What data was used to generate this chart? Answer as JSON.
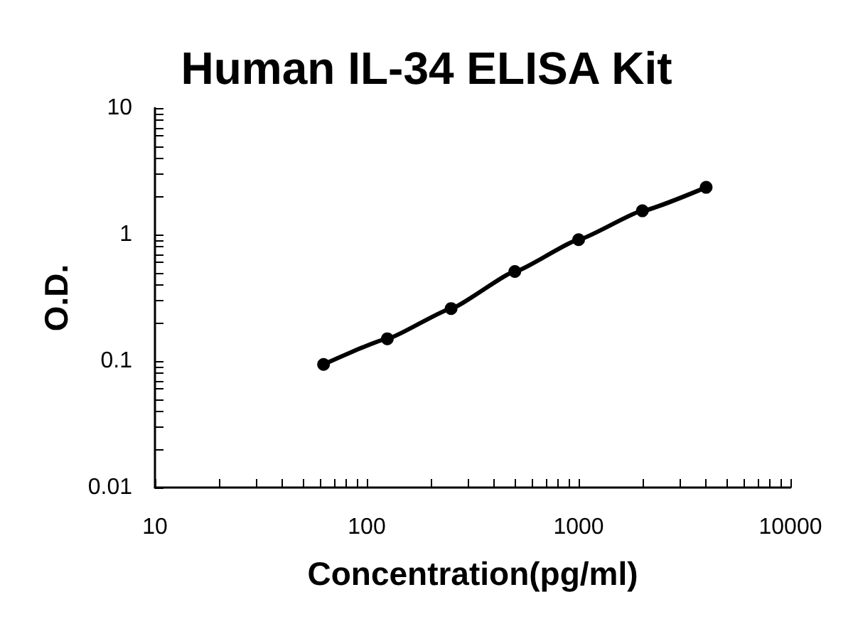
{
  "chart_data": {
    "type": "line",
    "title": "Human IL-34 ELISA Kit",
    "xlabel": "Concentration(pg/ml)",
    "ylabel": "O.D.",
    "x": [
      62.5,
      125,
      250,
      500,
      1000,
      2000,
      4000
    ],
    "series": [
      {
        "color": "#000000",
        "values": [
          0.094,
          0.15,
          0.26,
          0.51,
          0.91,
          1.54,
          2.36
        ]
      }
    ],
    "log": "xy",
    "xlim": [
      10,
      10000
    ],
    "ylim": [
      0.01,
      10
    ],
    "xticks": [
      10,
      {
        "value": 20,
        "label": null
      },
      {
        "value": 30,
        "label": null
      },
      {
        "value": 40,
        "label": null
      },
      {
        "value": 50,
        "label": null
      },
      {
        "value": 60,
        "label": null
      },
      {
        "value": 70,
        "label": null
      },
      {
        "value": 80,
        "label": null
      },
      {
        "value": 90,
        "label": null
      },
      100,
      {
        "value": 200,
        "label": null
      },
      {
        "value": 300,
        "label": null
      },
      {
        "value": 400,
        "label": null
      },
      {
        "value": 500,
        "label": null
      },
      {
        "value": 600,
        "label": null
      },
      {
        "value": 700,
        "label": null
      },
      {
        "value": 800,
        "label": null
      },
      {
        "value": 900,
        "label": null
      },
      1000,
      {
        "value": 2000,
        "label": null
      },
      {
        "value": 3000,
        "label": null
      },
      {
        "value": 4000,
        "label": null
      },
      {
        "value": 5000,
        "label": null
      },
      {
        "value": 6000,
        "label": null
      },
      {
        "value": 7000,
        "label": null
      },
      {
        "value": 8000,
        "label": null
      },
      {
        "value": 9000,
        "label": null
      },
      10000
    ],
    "yticks": [
      0.01,
      {
        "value": 0.02,
        "label": null
      },
      {
        "value": 0.03,
        "label": null
      },
      {
        "value": 0.04,
        "label": null
      },
      {
        "value": 0.05,
        "label": null
      },
      {
        "value": 0.06,
        "label": null
      },
      {
        "value": 0.07,
        "label": null
      },
      {
        "value": 0.08,
        "label": null
      },
      {
        "value": 0.09,
        "label": null
      },
      0.1,
      {
        "value": 0.2,
        "label": null
      },
      {
        "value": 0.3,
        "label": null
      },
      {
        "value": 0.4,
        "label": null
      },
      {
        "value": 0.5,
        "label": null
      },
      {
        "value": 0.6,
        "label": null
      },
      {
        "value": 0.7,
        "label": null
      },
      {
        "value": 0.8,
        "label": null
      },
      {
        "value": 0.9,
        "label": null
      },
      1,
      {
        "value": 2,
        "label": null
      },
      {
        "value": 3,
        "label": null
      },
      {
        "value": 4,
        "label": null
      },
      {
        "value": 5,
        "label": null
      },
      {
        "value": 6,
        "label": null
      },
      {
        "value": 7,
        "label": null
      },
      {
        "value": 8,
        "label": null
      },
      {
        "value": 9,
        "label": null
      },
      10
    ],
    "grid": false,
    "marker": "circle",
    "line_style": "solid"
  }
}
